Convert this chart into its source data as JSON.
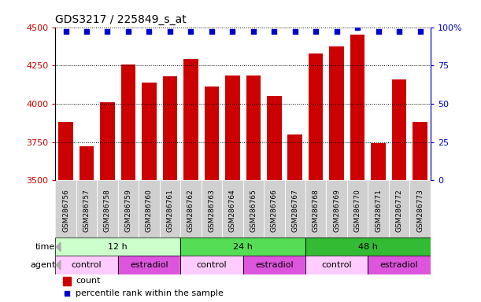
{
  "title": "GDS3217 / 225849_s_at",
  "samples": [
    "GSM286756",
    "GSM286757",
    "GSM286758",
    "GSM286759",
    "GSM286760",
    "GSM286761",
    "GSM286762",
    "GSM286763",
    "GSM286764",
    "GSM286765",
    "GSM286766",
    "GSM286767",
    "GSM286768",
    "GSM286769",
    "GSM286770",
    "GSM286771",
    "GSM286772",
    "GSM286773"
  ],
  "counts": [
    3880,
    3720,
    4010,
    4255,
    4140,
    4180,
    4290,
    4110,
    4185,
    4185,
    4050,
    3800,
    4330,
    4375,
    4450,
    3745,
    4160,
    3880
  ],
  "percentile": [
    97,
    97,
    97,
    97,
    97,
    97,
    97,
    97,
    97,
    97,
    97,
    97,
    97,
    97,
    100,
    97,
    97,
    97
  ],
  "ylim_left": [
    3500,
    4500
  ],
  "ylim_right": [
    0,
    100
  ],
  "yticks_left": [
    3500,
    3750,
    4000,
    4250,
    4500
  ],
  "yticks_right": [
    0,
    25,
    50,
    75,
    100
  ],
  "bar_color": "#cc0000",
  "percentile_color": "#0000cc",
  "label_bg_color": "#d0d0d0",
  "time_groups": [
    {
      "label": "12 h",
      "start": 0,
      "end": 6,
      "color": "#ccffcc"
    },
    {
      "label": "24 h",
      "start": 6,
      "end": 12,
      "color": "#55dd55"
    },
    {
      "label": "48 h",
      "start": 12,
      "end": 18,
      "color": "#33bb33"
    }
  ],
  "agent_groups": [
    {
      "label": "control",
      "start": 0,
      "end": 3,
      "color": "#ffccff"
    },
    {
      "label": "estradiol",
      "start": 3,
      "end": 6,
      "color": "#dd55dd"
    },
    {
      "label": "control",
      "start": 6,
      "end": 9,
      "color": "#ffccff"
    },
    {
      "label": "estradiol",
      "start": 9,
      "end": 12,
      "color": "#dd55dd"
    },
    {
      "label": "control",
      "start": 12,
      "end": 15,
      "color": "#ffccff"
    },
    {
      "label": "estradiol",
      "start": 15,
      "end": 18,
      "color": "#dd55dd"
    }
  ],
  "legend_count_label": "count",
  "legend_pct_label": "percentile rank within the sample",
  "time_label": "time",
  "agent_label": "agent"
}
